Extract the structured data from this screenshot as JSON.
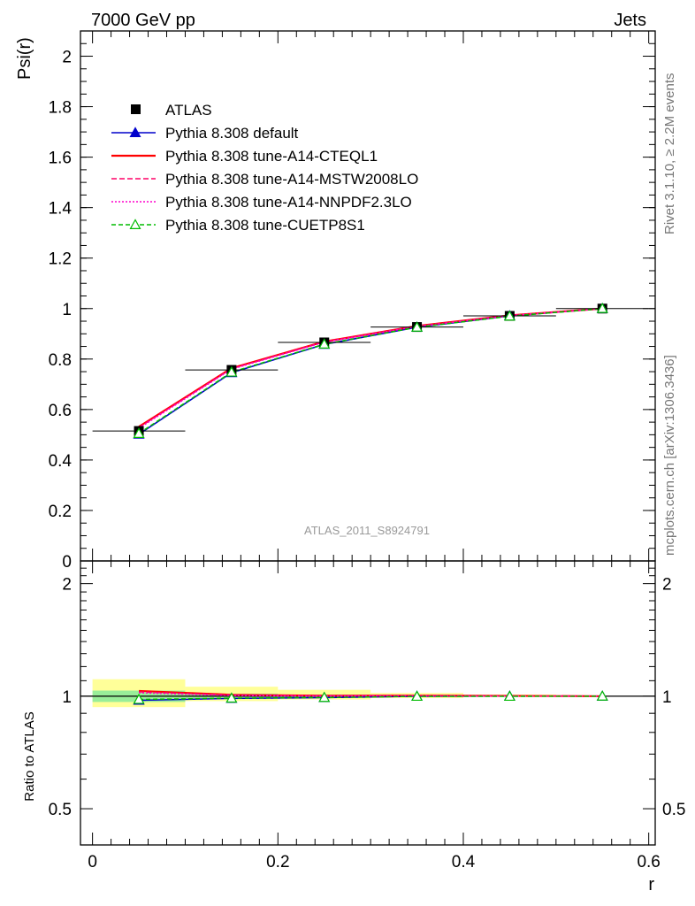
{
  "header": {
    "left": "7000 GeV pp",
    "right": "Jets"
  },
  "side_labels": {
    "rivet": "Rivet 3.1.10, ≥ 2.2M events",
    "mcplots": "mcplots.cern.ch [arXiv:1306.3436]"
  },
  "watermark": "ATLAS_2011_S8924791",
  "chart_data": [
    {
      "type": "line",
      "ylabel": "Psi(r)",
      "xlim": [
        -0.013,
        0.607
      ],
      "ylim": [
        0,
        2.1
      ],
      "yticks": [
        {
          "v": 0,
          "label": "0"
        },
        {
          "v": 0.2,
          "label": "0.2"
        },
        {
          "v": 0.4,
          "label": "0.4"
        },
        {
          "v": 0.6,
          "label": "0.6"
        },
        {
          "v": 0.8,
          "label": "0.8"
        },
        {
          "v": 1.0,
          "label": "1"
        },
        {
          "v": 1.2,
          "label": "1.2"
        },
        {
          "v": 1.4,
          "label": "1.4"
        },
        {
          "v": 1.6,
          "label": "1.6"
        },
        {
          "v": 1.8,
          "label": "1.8"
        },
        {
          "v": 2.0,
          "label": "2"
        }
      ],
      "legend_position": "top-left",
      "data": {
        "name": "ATLAS",
        "x": [
          0.05,
          0.15,
          0.25,
          0.35,
          0.45,
          0.55
        ],
        "y": [
          0.515,
          0.757,
          0.866,
          0.927,
          0.971,
          1.0
        ]
      },
      "series": [
        {
          "name": "Pythia 8.308 default",
          "color": "#0000cc",
          "dash": "",
          "marker": "triangle-filled",
          "y": [
            0.502,
            0.746,
            0.858,
            0.926,
            0.971,
            1.0
          ]
        },
        {
          "name": "Pythia 8.308 tune-A14-CTEQL1",
          "color": "#ff0000",
          "dash": "",
          "marker": "none",
          "y": [
            0.532,
            0.764,
            0.869,
            0.931,
            0.973,
            1.0
          ]
        },
        {
          "name": "Pythia 8.308 tune-A14-MSTW2008LO",
          "color": "#ff0066",
          "dash": "6,3",
          "marker": "none",
          "y": [
            0.529,
            0.762,
            0.868,
            0.93,
            0.972,
            1.0
          ]
        },
        {
          "name": "Pythia 8.308 tune-A14-NNPDF2.3LO",
          "color": "#ff00cc",
          "dash": "2,2",
          "marker": "none",
          "y": [
            0.526,
            0.76,
            0.867,
            0.929,
            0.972,
            1.0
          ]
        },
        {
          "name": "Pythia 8.308 tune-CUETP8S1",
          "color": "#00bb00",
          "dash": "5,3",
          "marker": "triangle-open",
          "y": [
            0.505,
            0.748,
            0.859,
            0.926,
            0.97,
            1.0
          ]
        }
      ]
    },
    {
      "type": "line",
      "xlabel": "r",
      "ylabel": "Ratio to ATLAS",
      "xlim": [
        -0.013,
        0.607
      ],
      "ylim": [
        0.4,
        2.3
      ],
      "yticks": [
        {
          "v": 0.5,
          "label": "0.5"
        },
        {
          "v": 1.0,
          "label": "1"
        },
        {
          "v": 2.0,
          "label": "2"
        }
      ],
      "xticks": [
        {
          "v": 0,
          "label": "0"
        },
        {
          "v": 0.2,
          "label": "0.2"
        },
        {
          "v": 0.4,
          "label": "0.4"
        },
        {
          "v": 0.6,
          "label": "0.6"
        }
      ],
      "bands": [
        {
          "x0": 0.0,
          "x1": 0.1,
          "stat": [
            0.965,
            1.035
          ],
          "total": [
            0.935,
            1.11
          ]
        },
        {
          "x0": 0.1,
          "x1": 0.2,
          "stat": [
            0.985,
            1.015
          ],
          "total": [
            0.97,
            1.06
          ]
        },
        {
          "x0": 0.2,
          "x1": 0.3,
          "stat": [
            0.99,
            1.01
          ],
          "total": [
            0.98,
            1.04
          ]
        },
        {
          "x0": 0.3,
          "x1": 0.4,
          "stat": [
            0.995,
            1.005
          ],
          "total": [
            0.988,
            1.02
          ]
        },
        {
          "x0": 0.4,
          "x1": 0.5,
          "stat": [
            0.997,
            1.003
          ],
          "total": [
            0.995,
            1.01
          ]
        },
        {
          "x0": 0.5,
          "x1": 0.6,
          "stat": [
            0.999,
            1.001
          ],
          "total": [
            0.999,
            1.001
          ]
        }
      ],
      "band_colors": {
        "total": "#ffff99",
        "stat": "#99ee99"
      },
      "series": [
        {
          "name": "Pythia 8.308 default",
          "y": [
            0.975,
            0.986,
            0.991,
            0.999,
            1.0,
            1.0
          ]
        },
        {
          "name": "Pythia 8.308 tune-A14-CTEQL1",
          "y": [
            1.033,
            1.009,
            1.003,
            1.004,
            1.002,
            1.0
          ]
        },
        {
          "name": "Pythia 8.308 tune-A14-MSTW2008LO",
          "y": [
            1.027,
            1.007,
            1.002,
            1.003,
            1.001,
            1.0
          ]
        },
        {
          "name": "Pythia 8.308 tune-A14-NNPDF2.3LO",
          "y": [
            1.021,
            1.004,
            1.001,
            1.002,
            1.001,
            1.0
          ]
        },
        {
          "name": "Pythia 8.308 tune-CUETP8S1",
          "y": [
            0.98,
            0.988,
            0.992,
            0.999,
            0.999,
            1.0
          ]
        }
      ]
    }
  ]
}
